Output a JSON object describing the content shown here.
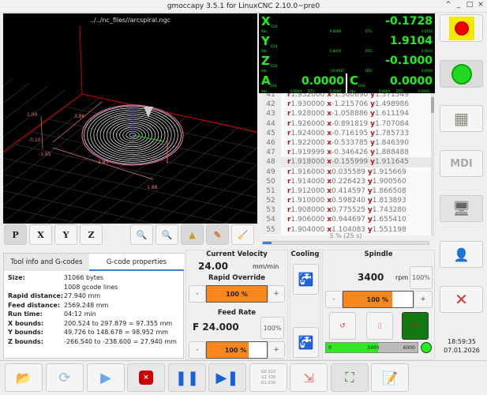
{
  "window": {
    "title": "gmoccapy 3.5.1 for LinuxCNC 2.10.0~pre0",
    "controls": [
      "^",
      "_",
      "□",
      "×"
    ]
  },
  "graphics": {
    "filename": "../../nc_files//arcspiral.ngc",
    "dims": [
      "1.00",
      "-0.10",
      "-1.95",
      "3.83",
      "1.88",
      "3.86"
    ],
    "toolbar": [
      "P",
      "X",
      "Y",
      "Z"
    ]
  },
  "dro": {
    "axes": [
      {
        "name": "X",
        "coord": "G54",
        "value": "-0.1728",
        "abs_label": "Abs",
        "abs": "9.6698",
        "dtg_label": "DTG",
        "dtg": "0.0156"
      },
      {
        "name": "Y",
        "coord": "G54",
        "value": "1.9104",
        "abs_label": "Abs",
        "abs": "5.8474",
        "dtg_label": "DTG",
        "dtg": "0.0012"
      },
      {
        "name": "Z",
        "coord": "G54",
        "value": "-0.1000",
        "abs_label": "Abs",
        "abs": "-10.4937",
        "dtg_label": "DTG",
        "dtg": "0.0000"
      },
      {
        "name": "A",
        "coord": "G54",
        "value": "0.0000",
        "abs_label": "Abs",
        "abs": "0.0000",
        "dtg_label": "DTG",
        "dtg": "0.0000"
      },
      {
        "name": "C",
        "coord": "G54",
        "value": "0.0000",
        "abs_label": "Abs",
        "abs": "0.0000",
        "dtg_label": "DTG",
        "dtg": "0.0000"
      }
    ]
  },
  "gcode": {
    "current_line": 48,
    "lines": [
      {
        "n": "41",
        "r": "1.932000",
        "x": "-1.360690",
        "y": "1.371549"
      },
      {
        "n": "42",
        "r": "1.930000",
        "x": "-1.215706",
        "y": "1.498986"
      },
      {
        "n": "43",
        "r": "1.928000",
        "x": "-1.058886",
        "y": "1.611194"
      },
      {
        "n": "44",
        "r": "1.926000",
        "x": "-0.891819",
        "y": "1.707084"
      },
      {
        "n": "45",
        "r": "1.924000",
        "x": "-0.716195",
        "y": "1.785733"
      },
      {
        "n": "46",
        "r": "1.922000",
        "x": "-0.533785",
        "y": "1.846390"
      },
      {
        "n": "47",
        "r": "1.919999",
        "x": "-0.346426",
        "y": "1.888488"
      },
      {
        "n": "48",
        "r": "1.918000",
        "x": "-0.155999",
        "y": "1.911645"
      },
      {
        "n": "49",
        "r": "1.916000",
        "x": "0.035589",
        "y": "1.915669"
      },
      {
        "n": "50",
        "r": "1.914000",
        "x": "0.226423",
        "y": "1.900560"
      },
      {
        "n": "51",
        "r": "1.912000",
        "x": "0.414597",
        "y": "1.866508"
      },
      {
        "n": "52",
        "r": "1.910000",
        "x": "0.598240",
        "y": "1.813893"
      },
      {
        "n": "53",
        "r": "1.908000",
        "x": "0.775525",
        "y": "1.743280"
      },
      {
        "n": "54",
        "r": "1.906000",
        "x": "0.944697",
        "y": "1.655410"
      },
      {
        "n": "55",
        "r": "1.904000",
        "x": "1.104083",
        "y": "1.551198"
      }
    ],
    "progress_text": "5 % (25 s)",
    "progress": 5
  },
  "notebook": {
    "tabs": [
      "Tool info and G-codes",
      "G-code properties"
    ],
    "active": 1,
    "props": [
      {
        "k": "Size:",
        "v": "31066 bytes"
      },
      {
        "k": "",
        "v": "1008 gcode lines"
      },
      {
        "k": "Rapid distance:",
        "v": "27.940 mm"
      },
      {
        "k": "Feed distance:",
        "v": "2569.248 mm"
      },
      {
        "k": "Run time:",
        "v": "04:12 min"
      },
      {
        "k": "X bounds:",
        "v": "200.524 to 297.879 = 97.355 mm"
      },
      {
        "k": "Y bounds:",
        "v": "49.726 to 148.678 = 98.952 mm"
      },
      {
        "k": "Z bounds:",
        "v": "-266.540 to -238.600 = 27.940 mm"
      }
    ]
  },
  "velocity": {
    "title": "Current Velocity",
    "value": "24.00",
    "unit": "mm/min",
    "rapid_title": "Rapid Override",
    "rapid": "100 %",
    "rapid_fill": 100,
    "feed_title": "Feed Rate",
    "feed": "F 24.000",
    "feed_reset": "100%",
    "feed_ovr": "100 %",
    "feed_fill": 70,
    "minus": "-",
    "plus": "+"
  },
  "cooling": {
    "title": "Cooling"
  },
  "spindle": {
    "title": "Spindle",
    "rpm": "3400",
    "unit": "rpm",
    "reset": "100%",
    "ovr": "100 %",
    "ovr_fill": 70,
    "bar_min": "0",
    "bar_val": "3400",
    "bar_max": "6000",
    "bar_fill": 57,
    "minus": "-",
    "plus": "+"
  },
  "clock": {
    "time": "18:59:35",
    "date": "07.01.2026"
  },
  "bottom": {
    "mdi_icon_text": [
      "G0 X10",
      "G1 Y20",
      "G1 Z30"
    ]
  },
  "right": {
    "mdi_label": "MDI"
  },
  "colors": {
    "accent": "#f7861c",
    "dro_green": "#1cf01c",
    "spindle_green": "#22ee22"
  }
}
